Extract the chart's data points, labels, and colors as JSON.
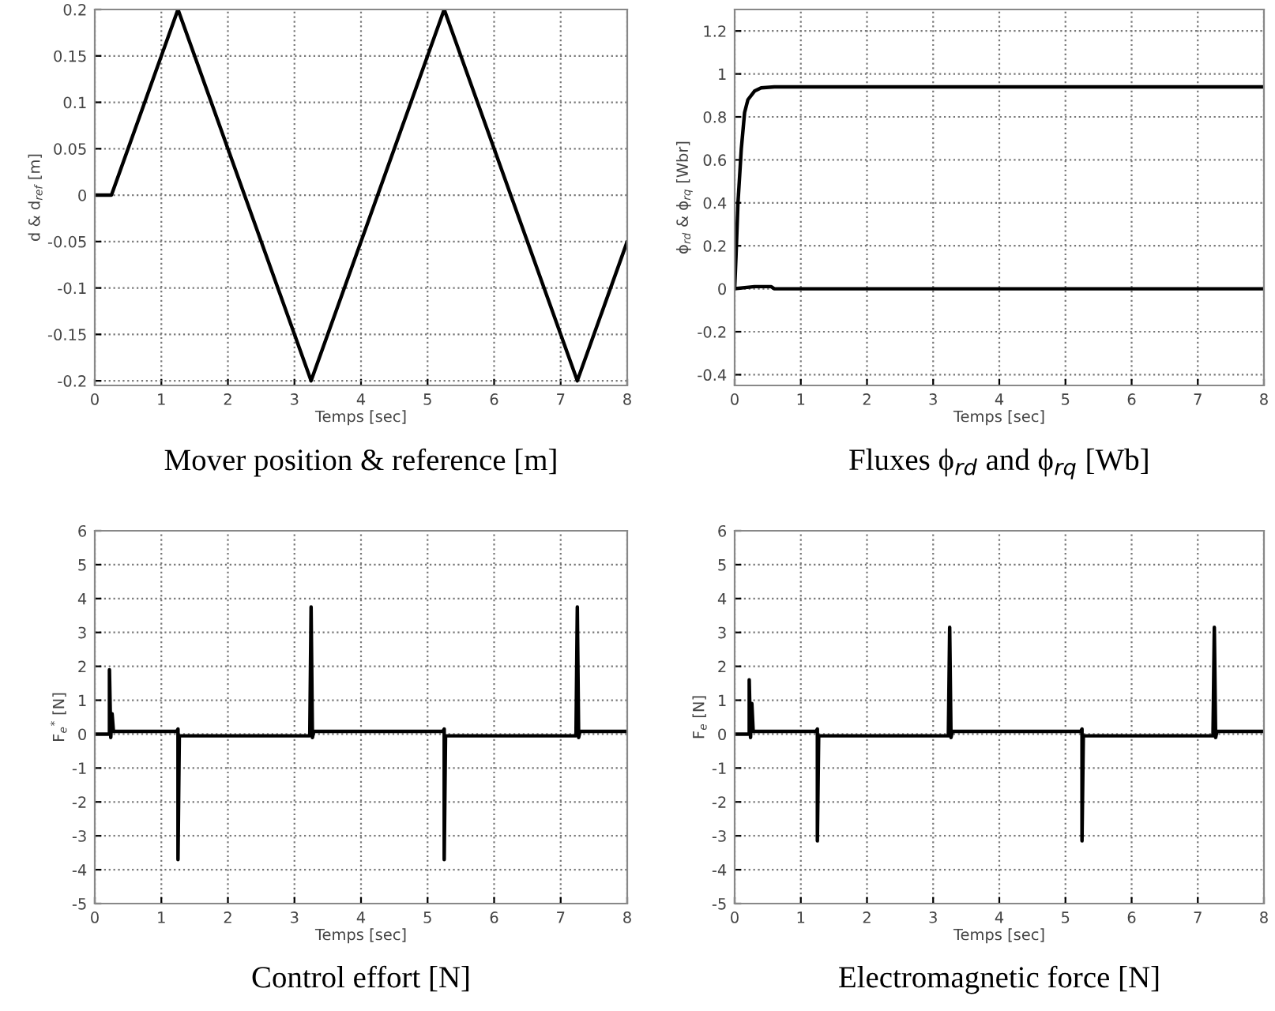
{
  "chart_data": [
    {
      "type": "line",
      "title": "Mover position & reference [m]",
      "xlabel": "Temps [sec]",
      "ylabel": "d & d$_{ref}$ [m]",
      "xlim": [
        0,
        8
      ],
      "ylim": [
        -0.205,
        0.2
      ],
      "xticks": [
        0,
        1,
        2,
        3,
        4,
        5,
        6,
        7,
        8
      ],
      "yticks": [
        -0.2,
        -0.15,
        -0.1,
        -0.05,
        0,
        0.05,
        0.1,
        0.15,
        0.2
      ],
      "grid": true,
      "line_style": "solid",
      "marker": "none",
      "series": [
        {
          "color": "#000000",
          "x": [
            0,
            0.25,
            1.25,
            3.25,
            5.25,
            7.25,
            8
          ],
          "values": [
            0,
            0,
            0.2,
            -0.2,
            0.2,
            -0.2,
            -0.05
          ]
        }
      ]
    },
    {
      "type": "line",
      "title": "Fluxes ϕ$_{rd}$ and ϕ$_{rq}$ [Wb]",
      "xlabel": "Temps [sec]",
      "ylabel": "ϕ$_{rd}$ & ϕ$_{rq}$ [Wbr]",
      "xlim": [
        0,
        8
      ],
      "ylim": [
        -0.45,
        1.3
      ],
      "xticks": [
        0,
        1,
        2,
        3,
        4,
        5,
        6,
        7,
        8
      ],
      "yticks": [
        -0.4,
        -0.2,
        0,
        0.2,
        0.4,
        0.6,
        0.8,
        1,
        1.2
      ],
      "grid": true,
      "line_style": "solid",
      "marker": "none",
      "series": [
        {
          "color": "#000000",
          "x": [
            0,
            0.02,
            0.05,
            0.1,
            0.15,
            0.2,
            0.3,
            0.4,
            0.6,
            8
          ],
          "values": [
            0,
            0.15,
            0.4,
            0.65,
            0.82,
            0.88,
            0.92,
            0.935,
            0.94,
            0.94
          ]
        },
        {
          "color": "#000000",
          "x": [
            0,
            0.3,
            0.55,
            0.6,
            8
          ],
          "values": [
            0,
            0.01,
            0.01,
            0,
            0
          ]
        }
      ]
    },
    {
      "type": "line",
      "title": "Control effort [N]",
      "xlabel": "Temps [sec]",
      "ylabel": "F$_{e}$$^{*}$ [N]",
      "xlim": [
        0,
        8
      ],
      "ylim": [
        -5,
        6
      ],
      "xticks": [
        0,
        1,
        2,
        3,
        4,
        5,
        6,
        7,
        8
      ],
      "yticks": [
        -5,
        -4,
        -3,
        -2,
        -1,
        0,
        1,
        2,
        3,
        4,
        5,
        6
      ],
      "grid": true,
      "line_style": "solid",
      "marker": "none",
      "series": [
        {
          "color": "#000000",
          "x": [
            0,
            0.22,
            0.22,
            0.24,
            0.26,
            0.28,
            1.23,
            1.25,
            1.25,
            1.27,
            3.23,
            3.25,
            3.27,
            3.29,
            5.23,
            5.25,
            5.25,
            5.27,
            7.23,
            7.25,
            7.27,
            7.29,
            8
          ],
          "values": [
            0,
            0,
            1.9,
            -0.1,
            0.6,
            0.08,
            0.08,
            0.15,
            -3.7,
            -0.05,
            -0.05,
            3.75,
            -0.1,
            0.08,
            0.08,
            0.15,
            -3.7,
            -0.05,
            -0.05,
            3.75,
            -0.1,
            0.08,
            0.08
          ]
        }
      ]
    },
    {
      "type": "line",
      "title": "Electromagnetic force [N]",
      "xlabel": "Temps [sec]",
      "ylabel": "F$_{e}$ [N]",
      "xlim": [
        0,
        8
      ],
      "ylim": [
        -5,
        6
      ],
      "xticks": [
        0,
        1,
        2,
        3,
        4,
        5,
        6,
        7,
        8
      ],
      "yticks": [
        -5,
        -4,
        -3,
        -2,
        -1,
        0,
        1,
        2,
        3,
        4,
        5,
        6
      ],
      "grid": true,
      "line_style": "solid",
      "marker": "none",
      "series": [
        {
          "color": "#000000",
          "x": [
            0,
            0.22,
            0.22,
            0.24,
            0.26,
            0.28,
            1.23,
            1.25,
            1.25,
            1.27,
            3.23,
            3.25,
            3.27,
            3.29,
            5.23,
            5.25,
            5.25,
            5.27,
            7.23,
            7.25,
            7.27,
            7.29,
            8
          ],
          "values": [
            0,
            0,
            1.6,
            -0.1,
            0.9,
            0.08,
            0.08,
            0.15,
            -3.15,
            -0.05,
            -0.05,
            3.15,
            -0.1,
            0.08,
            0.08,
            0.15,
            -3.15,
            -0.05,
            -0.05,
            3.15,
            -0.1,
            0.08,
            0.08
          ]
        }
      ]
    }
  ]
}
